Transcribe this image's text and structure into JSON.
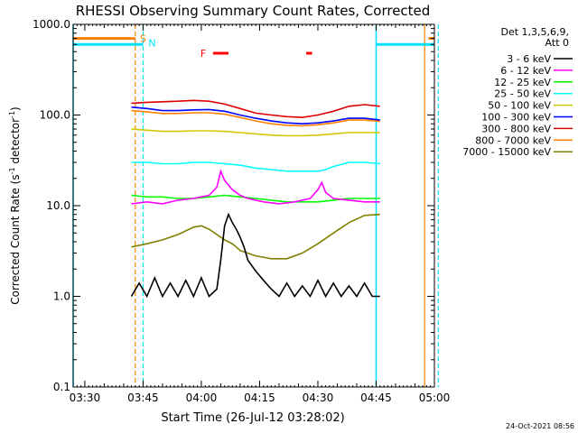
{
  "chart_data": {
    "type": "line",
    "title": "RHESSI Observing Summary Count Rates, Corrected",
    "xlabel": "Start Time (26-Jul-12 03:28:02)",
    "ylabel_main": "Corrected Count Rate (s",
    "ylabel_sup1": "-1",
    "ylabel_mid": " detector",
    "ylabel_sup2": "-1",
    "ylabel_end": ")",
    "yscale": "log",
    "ylim": [
      0.1,
      1000
    ],
    "xlim_minutes": [
      -1,
      92
    ],
    "xticks": [
      {
        "minutes": 2,
        "label": "03:30"
      },
      {
        "minutes": 17,
        "label": "03:45"
      },
      {
        "minutes": 32,
        "label": "04:00"
      },
      {
        "minutes": 47,
        "label": "04:15"
      },
      {
        "minutes": 62,
        "label": "04:30"
      },
      {
        "minutes": 77,
        "label": "04:45"
      },
      {
        "minutes": 92,
        "label": "05:00"
      }
    ],
    "yticks": [
      {
        "value": 1000,
        "label": "1000.0"
      },
      {
        "value": 100,
        "label": "100.0"
      },
      {
        "value": 10,
        "label": "10.0"
      },
      {
        "value": 1,
        "label": "1.0"
      },
      {
        "value": 0.1,
        "label": "0.1"
      }
    ],
    "legend": {
      "header_line1": "Det 1,3,5,6,9,",
      "header_line2": "Att 0",
      "placement": "right"
    },
    "series": [
      {
        "name": "3 - 6 keV",
        "color": "#000000",
        "x": [
          14,
          16,
          18,
          20,
          22,
          24,
          26,
          28,
          30,
          32,
          34,
          36,
          37,
          38,
          39,
          40,
          41,
          42,
          43,
          44,
          46,
          48,
          50,
          52,
          54,
          56,
          58,
          60,
          62,
          64,
          66,
          68,
          70,
          72,
          74,
          76,
          78
        ],
        "y": [
          1.0,
          1.4,
          1.0,
          1.6,
          1.0,
          1.4,
          1.0,
          1.5,
          1.0,
          1.6,
          1.0,
          1.2,
          2.5,
          6.0,
          8.0,
          6.5,
          5.5,
          4.5,
          3.5,
          2.5,
          1.9,
          1.5,
          1.2,
          1.0,
          1.4,
          1.0,
          1.3,
          1.0,
          1.5,
          1.0,
          1.4,
          1.0,
          1.3,
          1.0,
          1.4,
          1.0,
          1.0
        ]
      },
      {
        "name": "6 - 12 keV",
        "color": "#ff00ff",
        "x": [
          14,
          18,
          22,
          26,
          30,
          34,
          36,
          37,
          38,
          40,
          42,
          44,
          48,
          52,
          56,
          60,
          62,
          63,
          64,
          66,
          70,
          74,
          78
        ],
        "y": [
          10.5,
          11.0,
          10.5,
          11.5,
          12.0,
          13.0,
          16.0,
          24.0,
          19.0,
          15.0,
          13.0,
          12.0,
          11.0,
          10.5,
          11.0,
          12.0,
          15.0,
          18.0,
          14.0,
          12.0,
          11.5,
          11.0,
          11.0
        ]
      },
      {
        "name": "12 - 25 keV",
        "color": "#00ff00",
        "x": [
          14,
          18,
          22,
          26,
          30,
          34,
          38,
          42,
          46,
          50,
          54,
          58,
          62,
          66,
          70,
          74,
          78
        ],
        "y": [
          13.0,
          12.5,
          12.5,
          12.0,
          12.0,
          12.5,
          13.0,
          12.5,
          12.0,
          11.5,
          11.0,
          11.0,
          11.0,
          11.5,
          12.0,
          12.0,
          12.0
        ]
      },
      {
        "name": "25 - 50 keV",
        "color": "#00ffff",
        "x": [
          14,
          18,
          22,
          26,
          30,
          34,
          38,
          42,
          46,
          50,
          54,
          58,
          62,
          64,
          66,
          70,
          74,
          78
        ],
        "y": [
          30,
          30,
          29,
          29,
          30,
          30,
          29,
          28,
          26,
          25,
          24,
          24,
          24,
          25,
          27,
          30,
          30,
          29
        ]
      },
      {
        "name": "50 - 100 keV",
        "color": "#d2c800",
        "x": [
          14,
          18,
          22,
          26,
          30,
          34,
          38,
          42,
          46,
          50,
          54,
          58,
          62,
          66,
          70,
          74,
          78
        ],
        "y": [
          70,
          68,
          66,
          66,
          67,
          67,
          66,
          64,
          62,
          60,
          59,
          59,
          60,
          62,
          64,
          64,
          64
        ]
      },
      {
        "name": "100 - 300 keV",
        "color": "#0000ff",
        "x": [
          14,
          18,
          22,
          26,
          30,
          34,
          38,
          42,
          46,
          50,
          54,
          58,
          62,
          66,
          70,
          74,
          78
        ],
        "y": [
          122,
          118,
          112,
          112,
          114,
          115,
          110,
          100,
          92,
          86,
          82,
          80,
          82,
          86,
          92,
          92,
          88
        ]
      },
      {
        "name": "300 - 800 keV",
        "color": "#dd0000",
        "x": [
          14,
          18,
          22,
          26,
          30,
          34,
          38,
          42,
          46,
          50,
          54,
          58,
          62,
          66,
          70,
          74,
          78
        ],
        "y": [
          135,
          138,
          140,
          142,
          145,
          142,
          132,
          118,
          105,
          100,
          96,
          94,
          100,
          110,
          125,
          130,
          125
        ]
      },
      {
        "name": "800 - 7000 keV",
        "color": "#ff8000",
        "x": [
          14,
          18,
          22,
          26,
          30,
          34,
          38,
          42,
          46,
          50,
          54,
          58,
          62,
          66,
          70,
          74,
          78
        ],
        "y": [
          112,
          108,
          104,
          104,
          106,
          106,
          102,
          94,
          86,
          80,
          77,
          76,
          78,
          82,
          88,
          88,
          85
        ]
      },
      {
        "name": "7000 - 15000 keV",
        "color": "#808000",
        "x": [
          14,
          18,
          22,
          26,
          30,
          32,
          34,
          36,
          38,
          40,
          42,
          46,
          50,
          54,
          58,
          62,
          66,
          70,
          74,
          78
        ],
        "y": [
          3.5,
          3.8,
          4.2,
          4.8,
          5.8,
          6.0,
          5.5,
          4.8,
          4.2,
          3.8,
          3.2,
          2.8,
          2.6,
          2.6,
          3.0,
          3.8,
          5.0,
          6.5,
          7.8,
          8.0
        ]
      }
    ],
    "annotations": {
      "saa_label": "S",
      "night_label": "N",
      "flare_label": "F",
      "saa_color": "#ff8000",
      "night_color": "#00e0ff",
      "flare_color": "#ff0000",
      "saa_bars": [
        {
          "from": -1,
          "to": 15
        },
        {
          "from": 90.5,
          "to": 92
        }
      ],
      "night_bars": [
        {
          "from": -1,
          "to": 17
        },
        {
          "from": 77,
          "to": 92
        }
      ],
      "flare_bars": [
        {
          "from": 35,
          "to": 39
        },
        {
          "from": 59,
          "to": 60.5
        }
      ],
      "saa_lines": [
        15,
        89.5
      ],
      "night_lines_solid": [
        -1,
        77
      ],
      "night_lines_dashed": [
        17,
        93
      ],
      "night_level": 600,
      "saa_level": 700,
      "flare_level": 480
    }
  },
  "footer": {
    "timestamp": "24-Oct-2021 08:56"
  }
}
